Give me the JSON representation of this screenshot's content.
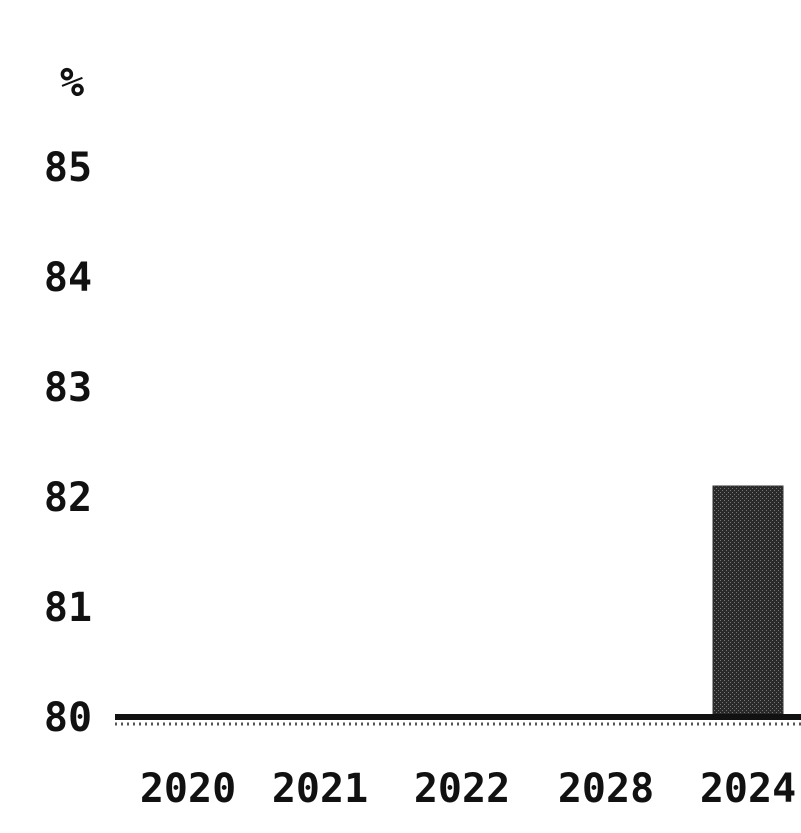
{
  "chart_data": {
    "type": "bar",
    "categories": [
      "2020",
      "2021",
      "2022",
      "2028",
      "2024"
    ],
    "values": [
      80,
      80,
      80,
      80,
      82.1
    ],
    "ylim": [
      80,
      86.8
    ],
    "y_ticks": [
      80,
      81,
      82,
      83,
      84,
      85
    ],
    "y_tick_labels": [
      "80",
      "81",
      "82",
      "83",
      "84",
      "85"
    ],
    "y_top_label": "%",
    "grid": false,
    "legend": "none",
    "bar_color": "#333333",
    "axis_color": "#111111"
  }
}
